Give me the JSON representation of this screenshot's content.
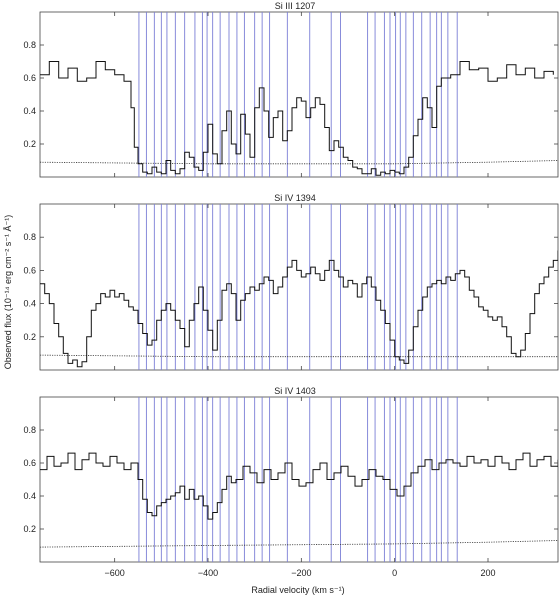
{
  "chart_data": {
    "type": "line",
    "xlabel": "Radial velocity (km s⁻¹)",
    "ylabel": "Observed flux (10⁻¹⁴ erg cm⁻² s⁻¹ Å⁻¹)",
    "xlim": [
      -760,
      350
    ],
    "xticks": [
      -600,
      -400,
      -200,
      0,
      200
    ],
    "xtick_labels": [
      "−600",
      "−400",
      "−200",
      "0",
      "200"
    ],
    "ylim": [
      0,
      1.0
    ],
    "yticks": [
      0.2,
      0.4,
      0.6,
      0.8
    ],
    "grid": false,
    "component_line_color": "#7b7fd6",
    "components_kms": [
      -548,
      -532,
      -515,
      -500,
      -488,
      -470,
      -450,
      -428,
      -412,
      -402,
      -390,
      -374,
      -355,
      -338,
      -322,
      -300,
      -284,
      -268,
      -230,
      -182,
      -136,
      -116,
      -58,
      -42,
      -22,
      -10,
      2,
      12,
      24,
      40,
      58,
      76,
      90,
      100,
      114,
      134
    ],
    "panels": [
      {
        "title": "Si III 1207",
        "flux": {
          "x": [
            -760,
            -740,
            -720,
            -700,
            -680,
            -660,
            -640,
            -620,
            -600,
            -580,
            -565,
            -558,
            -550,
            -540,
            -530,
            -520,
            -510,
            -500,
            -490,
            -480,
            -470,
            -460,
            -450,
            -440,
            -430,
            -420,
            -410,
            -400,
            -390,
            -380,
            -370,
            -360,
            -350,
            -340,
            -330,
            -320,
            -310,
            -300,
            -290,
            -280,
            -270,
            -260,
            -250,
            -240,
            -230,
            -220,
            -210,
            -200,
            -190,
            -180,
            -170,
            -160,
            -150,
            -140,
            -130,
            -120,
            -110,
            -100,
            -90,
            -80,
            -70,
            -60,
            -50,
            -40,
            -30,
            -20,
            -10,
            0,
            10,
            20,
            30,
            40,
            50,
            60,
            70,
            80,
            90,
            100,
            120,
            140,
            160,
            180,
            200,
            220,
            240,
            260,
            280,
            300,
            320,
            340
          ],
          "y": [
            0.62,
            0.7,
            0.6,
            0.66,
            0.58,
            0.6,
            0.7,
            0.65,
            0.62,
            0.58,
            0.42,
            0.18,
            0.08,
            0.03,
            0.02,
            0.06,
            0.03,
            0.02,
            0.1,
            0.04,
            0.02,
            0.05,
            0.15,
            0.12,
            0.06,
            0.04,
            0.15,
            0.32,
            0.14,
            0.08,
            0.28,
            0.4,
            0.2,
            0.14,
            0.38,
            0.26,
            0.12,
            0.42,
            0.54,
            0.4,
            0.24,
            0.36,
            0.4,
            0.22,
            0.28,
            0.42,
            0.48,
            0.46,
            0.36,
            0.42,
            0.48,
            0.44,
            0.3,
            0.16,
            0.22,
            0.18,
            0.12,
            0.1,
            0.06,
            0.05,
            0.02,
            0.02,
            0.05,
            0.01,
            0.03,
            0.02,
            0.04,
            0.03,
            0.02,
            0.06,
            0.12,
            0.25,
            0.35,
            0.48,
            0.42,
            0.3,
            0.55,
            0.6,
            0.62,
            0.7,
            0.65,
            0.66,
            0.58,
            0.6,
            0.68,
            0.62,
            0.66,
            0.6,
            0.64,
            0.62
          ]
        },
        "error": {
          "x": [
            -760,
            -400,
            0,
            200,
            350
          ],
          "y": [
            0.09,
            0.08,
            0.08,
            0.09,
            0.1
          ]
        }
      },
      {
        "title": "Si IV 1394",
        "flux": {
          "x": [
            -760,
            -750,
            -740,
            -730,
            -720,
            -710,
            -700,
            -690,
            -680,
            -670,
            -660,
            -650,
            -640,
            -630,
            -620,
            -610,
            -600,
            -590,
            -580,
            -570,
            -560,
            -550,
            -540,
            -530,
            -520,
            -510,
            -500,
            -490,
            -480,
            -470,
            -460,
            -450,
            -440,
            -430,
            -420,
            -410,
            -400,
            -390,
            -380,
            -370,
            -360,
            -350,
            -340,
            -330,
            -320,
            -310,
            -300,
            -290,
            -280,
            -270,
            -260,
            -250,
            -240,
            -230,
            -220,
            -210,
            -200,
            -190,
            -180,
            -170,
            -160,
            -150,
            -140,
            -130,
            -120,
            -110,
            -100,
            -90,
            -80,
            -70,
            -60,
            -50,
            -40,
            -30,
            -20,
            -10,
            0,
            10,
            20,
            30,
            40,
            50,
            60,
            70,
            80,
            90,
            100,
            110,
            120,
            130,
            140,
            150,
            160,
            170,
            180,
            190,
            200,
            210,
            220,
            230,
            240,
            250,
            260,
            270,
            280,
            290,
            300,
            310,
            320,
            330,
            340,
            350
          ],
          "y": [
            0.52,
            0.46,
            0.4,
            0.28,
            0.2,
            0.1,
            0.04,
            0.06,
            0.02,
            0.05,
            0.2,
            0.36,
            0.4,
            0.46,
            0.44,
            0.48,
            0.44,
            0.46,
            0.42,
            0.38,
            0.36,
            0.28,
            0.22,
            0.15,
            0.18,
            0.3,
            0.36,
            0.4,
            0.36,
            0.3,
            0.25,
            0.14,
            0.3,
            0.4,
            0.5,
            0.36,
            0.24,
            0.12,
            0.3,
            0.48,
            0.52,
            0.46,
            0.3,
            0.42,
            0.46,
            0.5,
            0.48,
            0.52,
            0.56,
            0.54,
            0.46,
            0.5,
            0.56,
            0.62,
            0.66,
            0.6,
            0.56,
            0.58,
            0.62,
            0.58,
            0.54,
            0.6,
            0.66,
            0.6,
            0.56,
            0.5,
            0.54,
            0.52,
            0.44,
            0.52,
            0.56,
            0.5,
            0.42,
            0.36,
            0.28,
            0.18,
            0.08,
            0.06,
            0.04,
            0.12,
            0.26,
            0.36,
            0.44,
            0.5,
            0.52,
            0.54,
            0.52,
            0.56,
            0.54,
            0.58,
            0.6,
            0.56,
            0.48,
            0.44,
            0.38,
            0.36,
            0.32,
            0.3,
            0.32,
            0.26,
            0.2,
            0.1,
            0.08,
            0.12,
            0.22,
            0.34,
            0.46,
            0.52,
            0.56,
            0.62,
            0.66,
            0.72
          ]
        },
        "error": {
          "x": [
            -760,
            -400,
            0,
            200,
            350
          ],
          "y": [
            0.09,
            0.08,
            0.08,
            0.08,
            0.08
          ]
        }
      },
      {
        "title": "Si IV 1403",
        "flux": {
          "x": [
            -760,
            -745,
            -730,
            -715,
            -700,
            -685,
            -670,
            -655,
            -640,
            -625,
            -610,
            -595,
            -580,
            -565,
            -550,
            -540,
            -530,
            -520,
            -510,
            -500,
            -490,
            -480,
            -470,
            -460,
            -450,
            -440,
            -430,
            -420,
            -410,
            -400,
            -390,
            -380,
            -370,
            -360,
            -350,
            -340,
            -325,
            -310,
            -295,
            -280,
            -265,
            -250,
            -235,
            -220,
            -205,
            -190,
            -175,
            -160,
            -145,
            -130,
            -115,
            -100,
            -85,
            -70,
            -55,
            -40,
            -25,
            -10,
            5,
            20,
            35,
            50,
            65,
            80,
            95,
            110,
            125,
            140,
            155,
            170,
            185,
            200,
            215,
            230,
            245,
            260,
            275,
            290,
            305,
            320,
            335,
            350
          ],
          "y": [
            0.56,
            0.64,
            0.58,
            0.6,
            0.66,
            0.56,
            0.62,
            0.66,
            0.6,
            0.58,
            0.64,
            0.6,
            0.56,
            0.6,
            0.5,
            0.38,
            0.3,
            0.28,
            0.34,
            0.36,
            0.38,
            0.4,
            0.42,
            0.46,
            0.38,
            0.44,
            0.38,
            0.4,
            0.34,
            0.26,
            0.3,
            0.36,
            0.44,
            0.52,
            0.48,
            0.5,
            0.58,
            0.54,
            0.48,
            0.56,
            0.5,
            0.54,
            0.6,
            0.5,
            0.46,
            0.48,
            0.56,
            0.6,
            0.5,
            0.54,
            0.58,
            0.52,
            0.46,
            0.5,
            0.56,
            0.52,
            0.5,
            0.44,
            0.4,
            0.46,
            0.54,
            0.58,
            0.62,
            0.56,
            0.6,
            0.62,
            0.6,
            0.58,
            0.64,
            0.6,
            0.62,
            0.58,
            0.64,
            0.6,
            0.56,
            0.62,
            0.66,
            0.58,
            0.62,
            0.64,
            0.58,
            0.62
          ]
        },
        "error": {
          "x": [
            -760,
            -400,
            0,
            200,
            350
          ],
          "y": [
            0.09,
            0.1,
            0.11,
            0.12,
            0.13
          ]
        }
      }
    ]
  }
}
